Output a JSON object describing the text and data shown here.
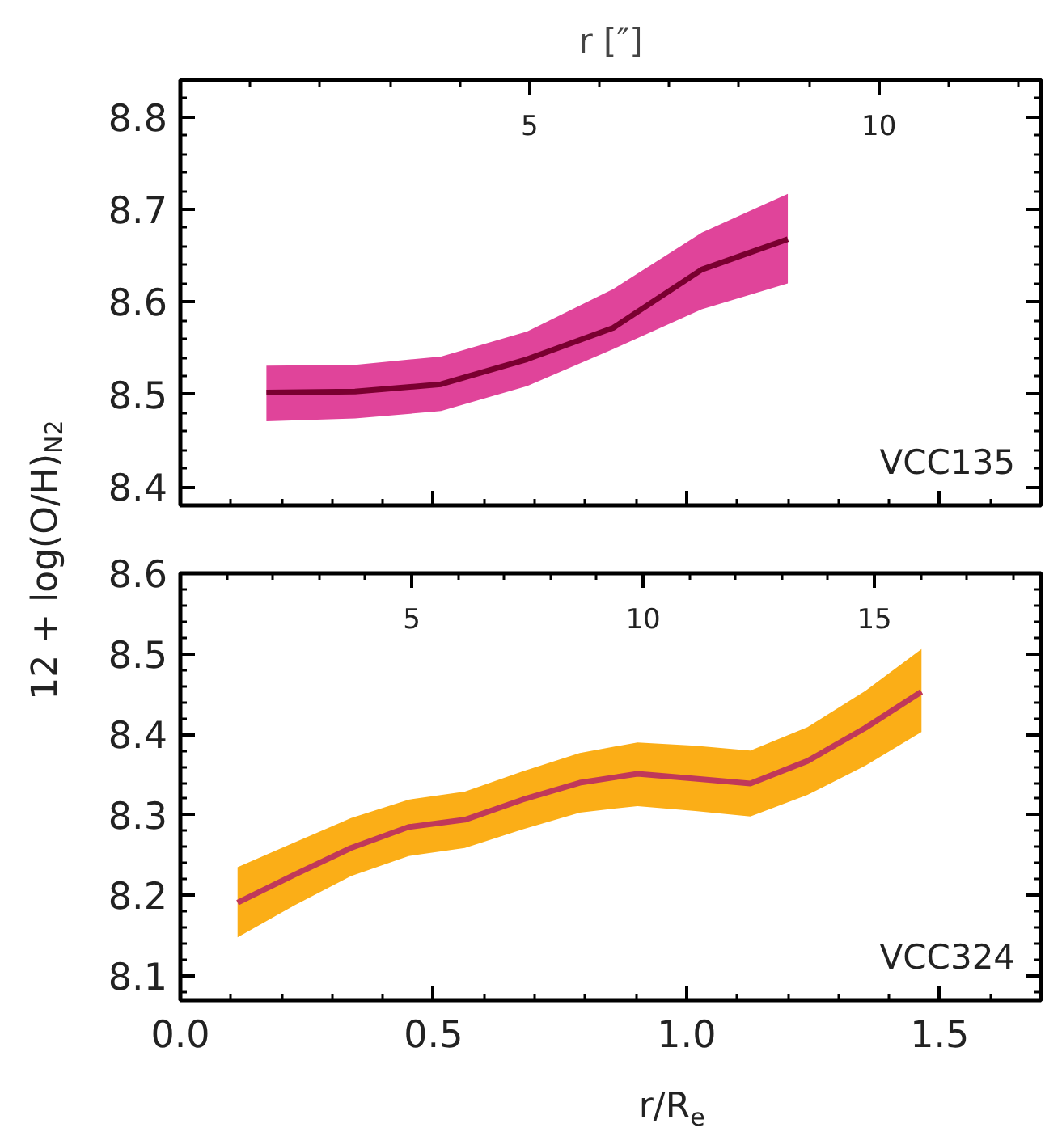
{
  "chart_data": [
    {
      "type": "line",
      "x2label": "r [″]",
      "ylabel": "12 + log(O/H)$_{N2}$",
      "annotations": [
        "VCC135"
      ],
      "xlim": [
        0,
        1.7
      ],
      "xticks": [
        0,
        0.5,
        1.0,
        1.5
      ],
      "colors": [
        "#e0449a"
      ],
      "ylim": [
        8.38,
        8.84
      ],
      "yticks": [
        8.4,
        8.5,
        8.6,
        8.7,
        8.8
      ],
      "x2lim": [
        0,
        12.32
      ],
      "x2ticks": [
        5,
        10
      ],
      "tick_labels": "y",
      "series": [
        {
          "color": "#7a0030",
          "x": [
            0.17,
            0.345,
            0.515,
            0.685,
            0.855,
            1.03,
            1.2
          ],
          "values": [
            8.502,
            8.503,
            8.511,
            8.538,
            8.572,
            8.635,
            8.668
          ],
          "lower": [
            8.471,
            8.474,
            8.482,
            8.509,
            8.549,
            8.592,
            8.62
          ],
          "upper": [
            8.531,
            8.532,
            8.541,
            8.568,
            8.614,
            8.675,
            8.717
          ]
        }
      ]
    },
    {
      "type": "line",
      "xlabel": "r/R$_{e}$",
      "annotations": [
        "VCC324"
      ],
      "xlim": [
        0,
        1.7
      ],
      "xticks": [
        {
          "value": 0,
          "label": "0.0"
        },
        0.5,
        {
          "value": 1,
          "label": "1.0"
        },
        1.5
      ],
      "colors": [
        "#fbae17"
      ],
      "ylim": [
        8.07,
        8.6
      ],
      "yticks": [
        8.1,
        8.2,
        8.3,
        8.4,
        8.5,
        8.6
      ],
      "x2lim": [
        0,
        18.6
      ],
      "x2ticks": [
        5,
        10,
        15
      ],
      "series": [
        {
          "color": "#c0385a",
          "x": [
            0.113,
            0.226,
            0.337,
            0.451,
            0.562,
            0.676,
            0.789,
            0.903,
            1.017,
            1.126,
            1.239,
            1.353,
            1.464
          ],
          "values": [
            8.191,
            8.226,
            8.259,
            8.285,
            8.294,
            8.319,
            8.34,
            8.351,
            8.345,
            8.339,
            8.367,
            8.408,
            8.453
          ],
          "lower": [
            8.148,
            8.188,
            8.224,
            8.249,
            8.259,
            8.282,
            8.303,
            8.311,
            8.305,
            8.298,
            8.325,
            8.361,
            8.403
          ],
          "upper": [
            8.235,
            8.266,
            8.296,
            8.319,
            8.329,
            8.354,
            8.377,
            8.39,
            8.386,
            8.38,
            8.409,
            8.454,
            8.506
          ]
        }
      ]
    }
  ]
}
